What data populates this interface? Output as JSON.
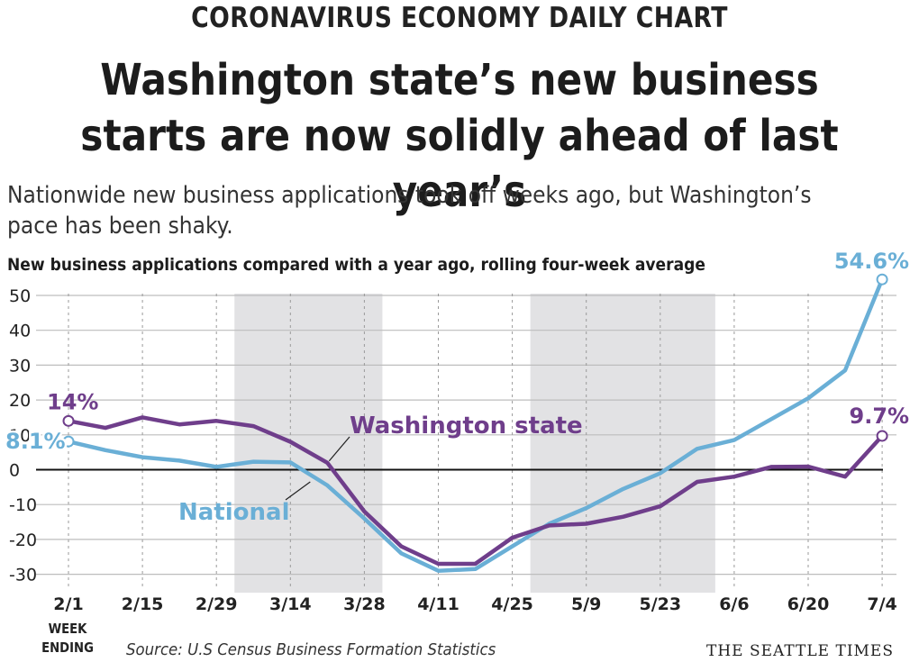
{
  "kicker": "CORONAVIRUS ECONOMY DAILY CHART",
  "headline": "Washington state’s new business starts are now solidly ahead of last year’s",
  "subhead": "Nationwide new business applications took off weeks ago, but Washington’s pace has been shaky.",
  "source": "Source: U.S Census Business Formation Statistics",
  "credit": "THE SEATTLE TIMES",
  "week_ending_label": "WEEK ENDING",
  "chart_data": {
    "type": "line",
    "title": "New business applications compared with a year ago, rolling four-week average",
    "xlabel": "WEEK ENDING",
    "ylabel": "",
    "ylim": [
      -32,
      55
    ],
    "yticks": [
      50,
      40,
      30,
      20,
      10,
      0,
      -10,
      -20,
      -30
    ],
    "x": [
      "2/1",
      "2/8",
      "2/15",
      "2/22",
      "2/29",
      "3/7",
      "3/14",
      "3/21",
      "3/28",
      "4/4",
      "4/11",
      "4/18",
      "4/25",
      "5/2",
      "5/9",
      "5/16",
      "5/23",
      "5/30",
      "6/6",
      "6/13",
      "6/20",
      "6/27",
      "7/4"
    ],
    "x_tick_labels": [
      "2/1",
      "2/15",
      "2/29",
      "3/14",
      "3/28",
      "4/11",
      "4/25",
      "5/9",
      "5/23",
      "6/6",
      "6/20",
      "7/4"
    ],
    "grid": "horizontal",
    "shaded_x_ranges": [
      [
        "3/7",
        "3/28"
      ],
      [
        "5/2",
        "5/30"
      ]
    ],
    "series": [
      {
        "name": "National",
        "color": "#6aafd6",
        "values": [
          8.1,
          5.6,
          3.6,
          2.6,
          0.8,
          2.3,
          2.1,
          -4.5,
          -14.0,
          -24.0,
          -29.0,
          -28.5,
          -22.0,
          -15.5,
          -11.0,
          -5.5,
          -1.0,
          6.0,
          8.5,
          14.5,
          20.5,
          28.5,
          54.6
        ],
        "end_label": "54.6%",
        "start_label": "8.1%"
      },
      {
        "name": "Washington state",
        "color": "#6f3e8b",
        "values": [
          14.0,
          12.0,
          15.0,
          13.0,
          14.0,
          12.5,
          8.0,
          2.0,
          -12.0,
          -22.0,
          -27.0,
          -27.0,
          -19.5,
          -16.0,
          -15.5,
          -13.5,
          -10.5,
          -3.5,
          -2.0,
          0.8,
          0.9,
          -2.0,
          9.7
        ],
        "end_label": "9.7%",
        "start_label": "14%"
      }
    ]
  }
}
